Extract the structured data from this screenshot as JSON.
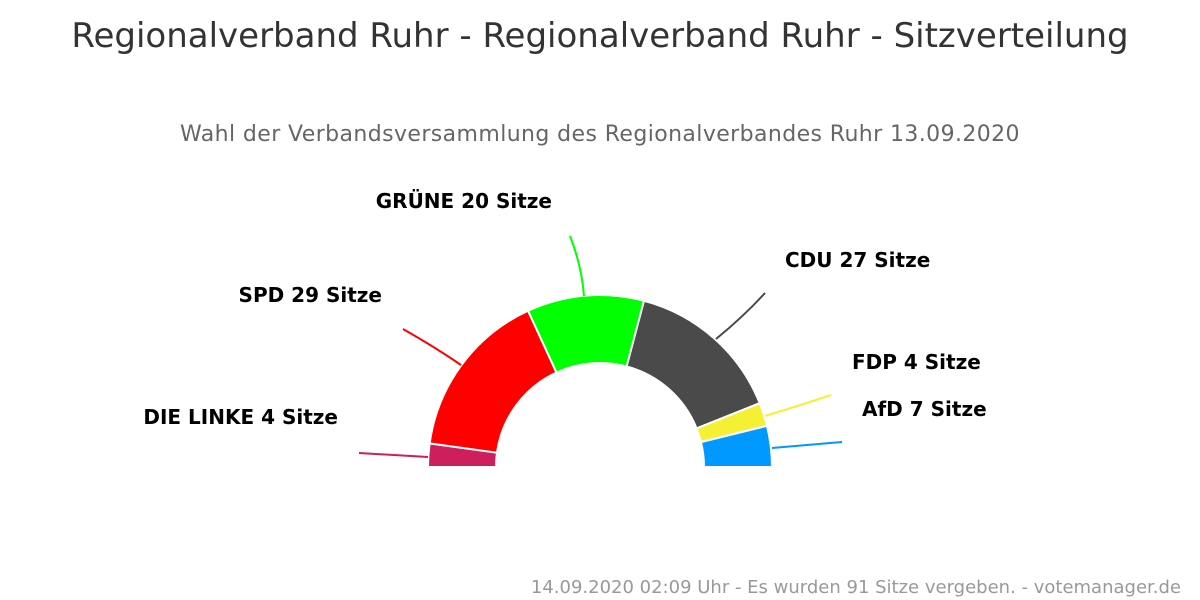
{
  "header": {
    "title": "Regionalverband Ruhr - Regionalverband Ruhr - Sitzverteilung",
    "subtitle": "Wahl der Verbandsversammlung des Regionalverbandes Ruhr 13.09.2020"
  },
  "footer": {
    "text": "14.09.2020 02:09 Uhr - Es wurden 91 Sitze vergeben. - votemanager.de"
  },
  "chart_data": {
    "type": "pie",
    "variant": "semicircle-donut (parliament)",
    "title": "Regionalverband Ruhr - Regionalverband Ruhr - Sitzverteilung",
    "subtitle": "Wahl der Verbandsversammlung des Regionalverbandes Ruhr 13.09.2020",
    "total": 91,
    "unit": "Sitze",
    "slices": [
      {
        "name": "DIE LINKE",
        "value": 4,
        "color": "#cc1f5c",
        "label": "DIE LINKE 4 Sitze"
      },
      {
        "name": "SPD",
        "value": 29,
        "color": "#ff0000",
        "label": "SPD 29 Sitze"
      },
      {
        "name": "GRÜNE",
        "value": 20,
        "color": "#00ff00",
        "label": "GRÜNE 20 Sitze"
      },
      {
        "name": "CDU",
        "value": 27,
        "color": "#4a4a4a",
        "label": "CDU 27 Sitze"
      },
      {
        "name": "FDP",
        "value": 4,
        "color": "#f5f034",
        "label": "FDP 4 Sitze"
      },
      {
        "name": "AfD",
        "value": 7,
        "color": "#0099ff",
        "label": "AfD 7 Sitze"
      }
    ]
  }
}
